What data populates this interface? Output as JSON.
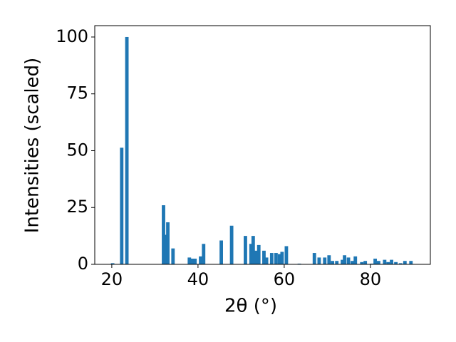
{
  "chart_data": {
    "type": "bar",
    "xlabel": "2θ (°)",
    "ylabel": "Intensities (scaled)",
    "color": "#1f77b4",
    "x": [
      20.2,
      22.3,
      23.5,
      32.0,
      32.5,
      33.0,
      34.2,
      38.0,
      38.6,
      39.3,
      40.6,
      41.3,
      45.4,
      47.8,
      51.0,
      52.3,
      52.8,
      53.4,
      54.1,
      55.3,
      55.9,
      57.1,
      58.1,
      58.9,
      59.5,
      60.5,
      63.5,
      67.0,
      68.1,
      69.4,
      70.4,
      71.2,
      72.2,
      73.5,
      74.0,
      74.9,
      75.8,
      76.5,
      78.0,
      78.8,
      80.3,
      81.1,
      81.9,
      83.3,
      84.1,
      84.9,
      85.9,
      87.0,
      88.0,
      89.4
    ],
    "values": [
      0.5,
      51.3,
      100,
      26,
      13,
      18.5,
      7,
      3,
      2.5,
      2.5,
      3.5,
      9,
      10.5,
      17,
      12.5,
      9,
      12.5,
      6,
      8.5,
      6,
      3,
      5,
      5,
      4.5,
      5.5,
      8,
      0.3,
      5,
      3,
      3,
      4,
      1.5,
      1.5,
      2,
      4,
      3,
      1.5,
      3.5,
      1,
      1.5,
      0.3,
      2.5,
      1.5,
      2,
      1,
      2,
      1,
      0.5,
      1.5,
      1.5
    ],
    "xlim": [
      16.05,
      93.9
    ],
    "ylim": [
      0,
      105
    ],
    "xticks": [
      20,
      40,
      60,
      80
    ],
    "yticks": [
      0,
      25,
      50,
      75,
      100
    ]
  }
}
